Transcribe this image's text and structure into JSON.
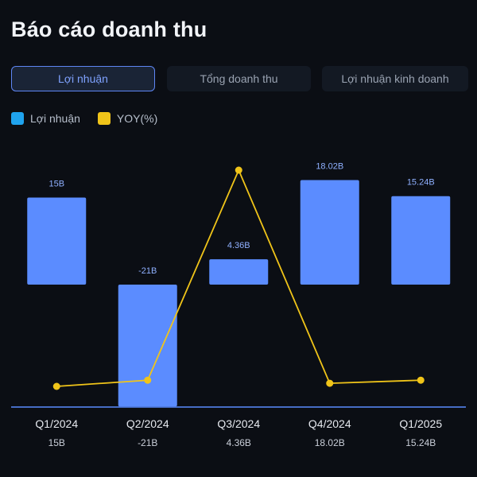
{
  "page": {
    "title": "Báo cáo doanh thu"
  },
  "tabs": [
    {
      "label": "Lợi nhuận",
      "active": true
    },
    {
      "label": "Tổng doanh thu",
      "active": false
    },
    {
      "label": "Lợi nhuận kinh doanh",
      "active": false
    }
  ],
  "legend": [
    {
      "label": "Lợi nhuận",
      "color": "#1fa3ee"
    },
    {
      "label": "YOY(%)",
      "color": "#f0c419"
    }
  ],
  "colors": {
    "bar": "#5b8cff",
    "line": "#f0c419",
    "axis": "#5b8cff"
  },
  "chart_data": {
    "type": "bar",
    "categories": [
      "Q1/2024",
      "Q2/2024",
      "Q3/2024",
      "Q4/2024",
      "Q1/2025"
    ],
    "value_labels": [
      "15B",
      "-21B",
      "4.36B",
      "18.02B",
      "15.24B"
    ],
    "series": [
      {
        "name": "Lợi nhuận",
        "type": "bar",
        "values": [
          15,
          -21,
          4.36,
          18.02,
          15.24
        ]
      },
      {
        "name": "YOY(%)",
        "type": "line",
        "values": [
          -50,
          -40,
          300,
          -45,
          -40
        ]
      }
    ],
    "grid": false
  }
}
